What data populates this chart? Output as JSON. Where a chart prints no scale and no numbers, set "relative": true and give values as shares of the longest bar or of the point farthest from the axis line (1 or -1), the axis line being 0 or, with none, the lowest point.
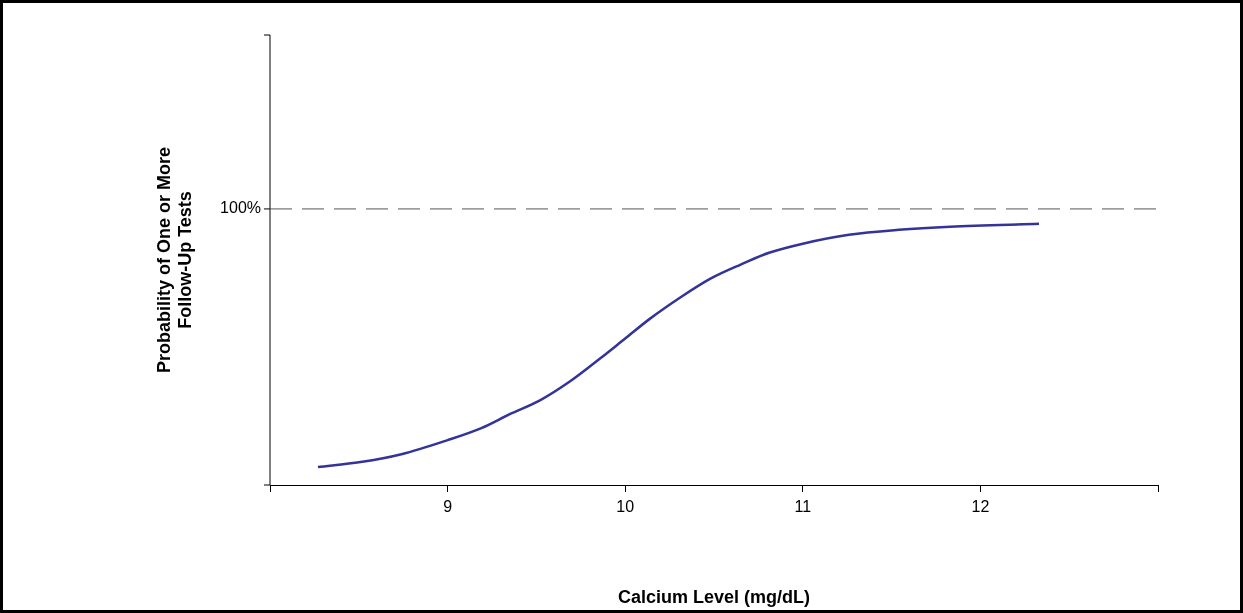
{
  "chart_data": {
    "type": "line",
    "xlabel": "Calcium Level (mg/dL)",
    "ylabel": "Probability of One or More\nFollow-Up Tests",
    "relative": true,
    "xlim": [
      8,
      13
    ],
    "xticks": [
      {
        "value": 8,
        "label": null
      },
      9,
      10,
      11,
      12,
      {
        "value": 13,
        "label": null
      }
    ],
    "grid": false,
    "legend": false,
    "marker": "none",
    "line_style": "solid",
    "series": [
      {
        "color": "#333399",
        "x": [
          8.27,
          8.51,
          8.74,
          9.0,
          9.19,
          9.35,
          9.52,
          9.69,
          9.86,
          10.0,
          10.14,
          10.31,
          10.48,
          10.65,
          10.81,
          11.0,
          11.26,
          11.54,
          11.83,
          12.33
        ],
        "values": [
          0.069,
          0.088,
          0.118,
          0.172,
          0.218,
          0.271,
          0.324,
          0.397,
          0.485,
          0.561,
          0.637,
          0.718,
          0.79,
          0.844,
          0.889,
          0.924,
          0.958,
          0.977,
          0.989,
          1
        ]
      }
    ],
    "ref_lines": [
      {
        "axis": "y",
        "value": 1.057,
        "color": "#555555",
        "line_style": "dashed"
      }
    ],
    "annotations": [
      "100%"
    ]
  }
}
